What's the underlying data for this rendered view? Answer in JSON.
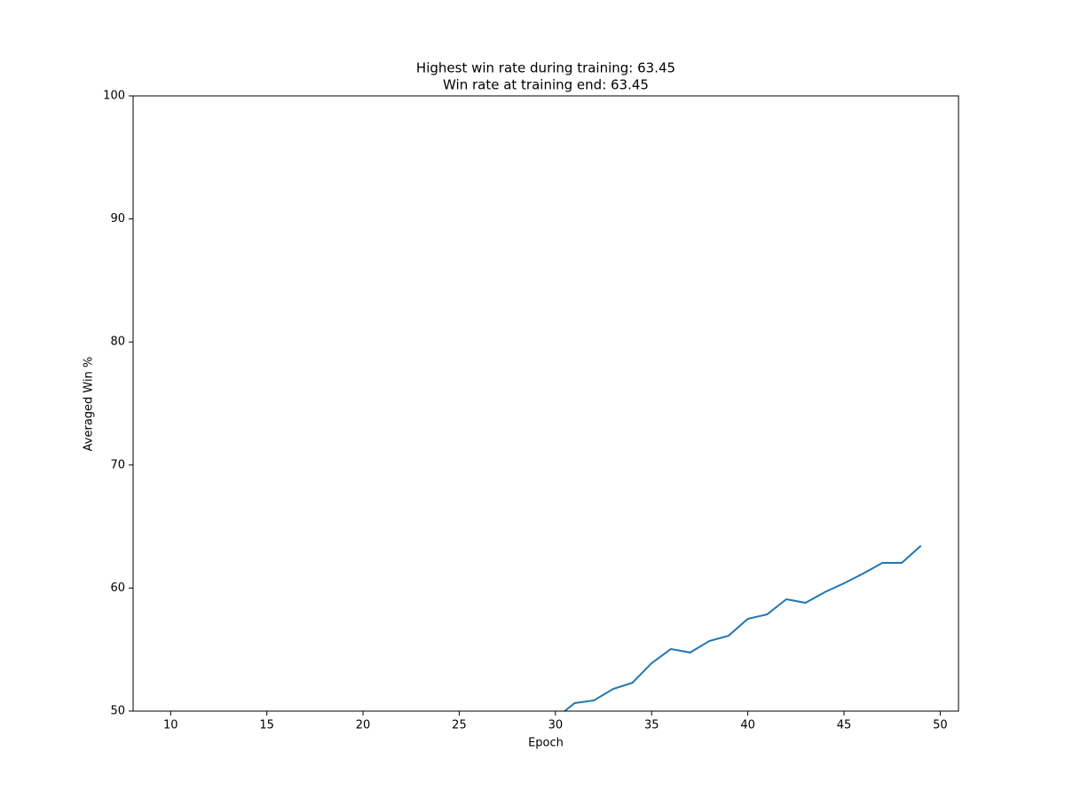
{
  "chart_data": {
    "type": "line",
    "title": [
      "Highest win rate during training: 63.45",
      "Win rate at training end: 63.45"
    ],
    "xlabel": "Epoch",
    "ylabel": "Averaged Win %",
    "x": [
      30,
      31,
      32,
      33,
      34,
      35,
      36,
      37,
      38,
      39,
      40,
      41,
      42,
      43,
      44,
      45,
      46,
      47,
      48,
      49
    ],
    "series": [
      {
        "color": "#1f77b4",
        "values": [
          49.4,
          50.65,
          50.87,
          51.8,
          52.3,
          53.9,
          55.05,
          54.76,
          55.7,
          56.13,
          57.5,
          57.86,
          59.09,
          58.8,
          59.67,
          60.39,
          61.18,
          62.05,
          62.05,
          63.45
        ]
      }
    ],
    "xlim": [
      8.05,
      50.95
    ],
    "xticks": [
      10,
      15,
      20,
      25,
      30,
      35,
      40,
      45,
      50
    ],
    "ylim": [
      50,
      100
    ],
    "yticks": [
      50,
      60,
      70,
      80,
      90,
      100
    ]
  }
}
